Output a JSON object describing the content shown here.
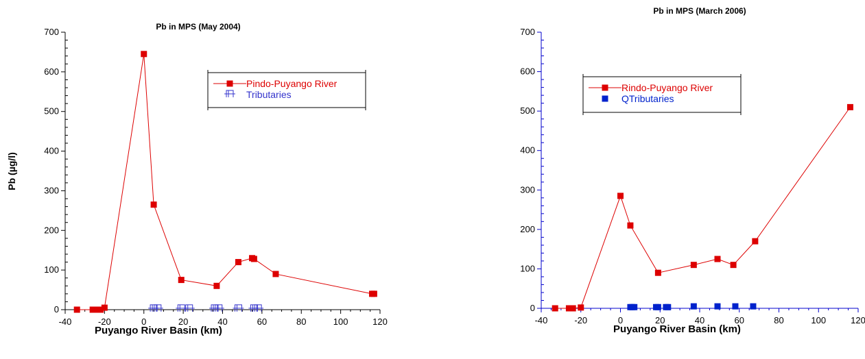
{
  "chart_data": [
    {
      "type": "line",
      "title": "Pb in MPS (May 2004)",
      "xlabel": "Puyango River Basin (km)",
      "ylabel": "Pb (µg/l)",
      "xlim": [
        -40,
        120
      ],
      "ylim": [
        0,
        700
      ],
      "x_ticks": [
        "-40",
        "-20",
        "0",
        "20",
        "40",
        "60",
        "80",
        "100",
        "120"
      ],
      "y_ticks": [
        "0",
        "100",
        "200",
        "300",
        "400",
        "500",
        "600",
        "700"
      ],
      "legend_position": "top-right",
      "series": [
        {
          "name": "Pindo-Puyango River",
          "color": "#dd0000",
          "marker": "square",
          "line": true,
          "x": [
            -34,
            -26,
            -24,
            -22,
            -20,
            0,
            5,
            19,
            37,
            48,
            55,
            56,
            67,
            116,
            117
          ],
          "y": [
            0,
            0,
            0,
            0,
            5,
            645,
            265,
            75,
            60,
            120,
            130,
            128,
            90,
            40,
            40
          ]
        },
        {
          "name": "Tributaries",
          "color": "#3333cc",
          "marker": "bracket",
          "line": false,
          "x": [
            5,
            7,
            19,
            23,
            36,
            38,
            48,
            56,
            58
          ],
          "y": [
            2,
            2,
            2,
            2,
            2,
            2,
            2,
            2,
            2
          ]
        }
      ]
    },
    {
      "type": "line",
      "title": "Pb in MPS (March 2006)",
      "xlabel": "Puyango River Basin (km)",
      "ylabel": "",
      "xlim": [
        -40,
        120
      ],
      "ylim": [
        0,
        700
      ],
      "x_ticks": [
        "-40",
        "-20",
        "0",
        "20",
        "40",
        "60",
        "80",
        "100",
        "120"
      ],
      "y_ticks": [
        "0",
        "100",
        "200",
        "300",
        "400",
        "500",
        "600",
        "700"
      ],
      "legend_position": "top-left",
      "series": [
        {
          "name": "Rindo-Puyango River",
          "color": "#dd0000",
          "marker": "square",
          "line": true,
          "x": [
            -33,
            -26,
            -24,
            -20,
            0,
            5,
            19,
            37,
            49,
            57,
            68,
            116
          ],
          "y": [
            0,
            0,
            0,
            2,
            285,
            210,
            90,
            110,
            125,
            110,
            170,
            510
          ]
        },
        {
          "name": "QTributaries",
          "color": "#0022cc",
          "marker": "square",
          "line": false,
          "x": [
            5,
            6,
            7,
            18,
            19,
            23,
            24,
            37,
            49,
            58,
            67
          ],
          "y": [
            3,
            3,
            3,
            3,
            3,
            3,
            3,
            5,
            5,
            5,
            5
          ]
        }
      ]
    }
  ]
}
